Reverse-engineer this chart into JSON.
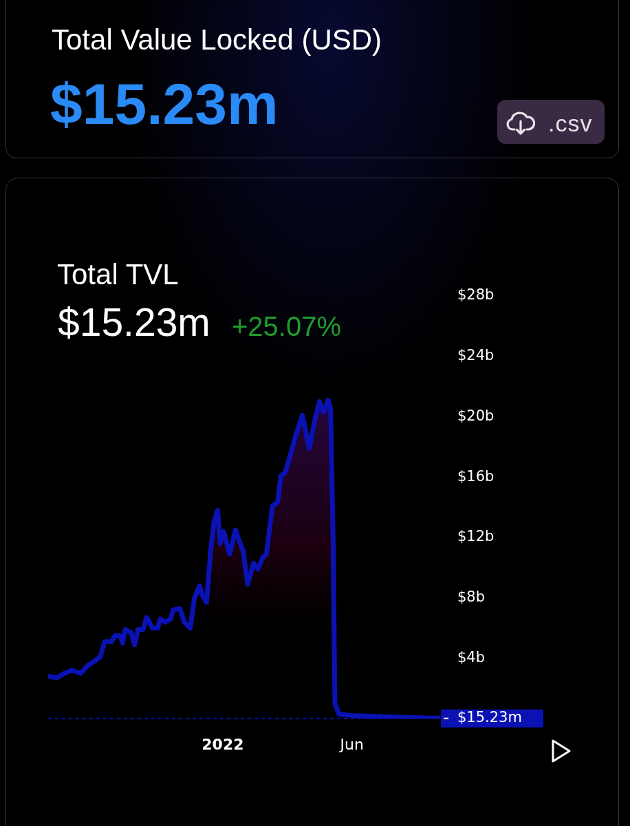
{
  "chart_data": {
    "type": "area",
    "title": "Total Value Locked (USD)",
    "subtitle": "$15.23m",
    "annotations": [
      "Total TVL",
      "$15.23m",
      "+25.07%",
      ".csv"
    ],
    "x": [
      "2021-06-13",
      "2021-06-21",
      "2021-06-30",
      "2021-07-09",
      "2021-07-19",
      "2021-07-27",
      "2021-08-04",
      "2021-08-11",
      "2021-08-16",
      "2021-08-24",
      "2021-08-28",
      "2021-09-03",
      "2021-09-06",
      "2021-09-09",
      "2021-09-16",
      "2021-09-20",
      "2021-09-24",
      "2021-09-30",
      "2021-10-04",
      "2021-10-11",
      "2021-10-17",
      "2021-10-20",
      "2021-10-26",
      "2021-11-01",
      "2021-11-04",
      "2021-11-12",
      "2021-11-17",
      "2021-11-24",
      "2021-11-29",
      "2021-12-05",
      "2021-12-08",
      "2021-12-13",
      "2021-12-18",
      "2021-12-22",
      "2021-12-26",
      "2021-12-29",
      "2022-01-02",
      "2022-01-09",
      "2022-01-16",
      "2022-01-20",
      "2022-01-25",
      "2022-01-30",
      "2022-02-06",
      "2022-02-11",
      "2022-02-17",
      "2022-02-21",
      "2022-02-28",
      "2022-03-06",
      "2022-03-10",
      "2022-03-15",
      "2022-03-22",
      "2022-03-28",
      "2022-04-04",
      "2022-04-12",
      "2022-04-19",
      "2022-04-24",
      "2022-04-29",
      "2022-05-04",
      "2022-05-07",
      "2022-05-10",
      "2022-05-12",
      "2022-05-17",
      "2022-05-31",
      "2022-07-18",
      "2022-09-11"
    ],
    "values": [
      2.8,
      2.7,
      3.0,
      3.2,
      3.0,
      3.5,
      3.8,
      4.1,
      5.1,
      5.1,
      5.5,
      5.5,
      5.0,
      5.9,
      5.7,
      4.9,
      5.9,
      5.9,
      6.7,
      6.0,
      6.0,
      6.6,
      6.4,
      6.6,
      7.2,
      7.3,
      6.4,
      6.0,
      8.0,
      8.8,
      8.2,
      7.7,
      11.2,
      13.1,
      13.8,
      11.6,
      12.4,
      10.9,
      12.5,
      11.8,
      11.1,
      8.9,
      10.3,
      9.9,
      10.7,
      10.9,
      14.1,
      14.3,
      16.1,
      16.3,
      17.7,
      18.9,
      20.1,
      17.9,
      19.9,
      21.0,
      20.3,
      21.1,
      20.5,
      11.6,
      1.0,
      0.3,
      0.2,
      0.1,
      0.02
    ],
    "color": "#0a12b4",
    "line_style": "solid",
    "marker": "none",
    "xlim": [
      "2021-06-11",
      "2022-09-12"
    ],
    "xticks": [
      {
        "value": "2022-01-01",
        "label": "2022"
      },
      {
        "value": "2022-06-01",
        "label": "Jun"
      }
    ],
    "ylim": [
      0,
      28
    ],
    "yticks": [
      {
        "value": 4,
        "label": "$4b"
      },
      {
        "value": 8,
        "label": "$8b"
      },
      {
        "value": 12,
        "label": "$12b"
      },
      {
        "value": 16,
        "label": "$16b"
      },
      {
        "value": 20,
        "label": "$20b"
      },
      {
        "value": 24,
        "label": "$24b"
      },
      {
        "value": 28,
        "label": "$28b"
      }
    ],
    "ref_lines": [
      {
        "axis": "y",
        "value": 0.01523,
        "label": "$15.23m",
        "color": "#0a12b4",
        "line_style": "dashed"
      }
    ],
    "grid": false,
    "legend": false
  }
}
